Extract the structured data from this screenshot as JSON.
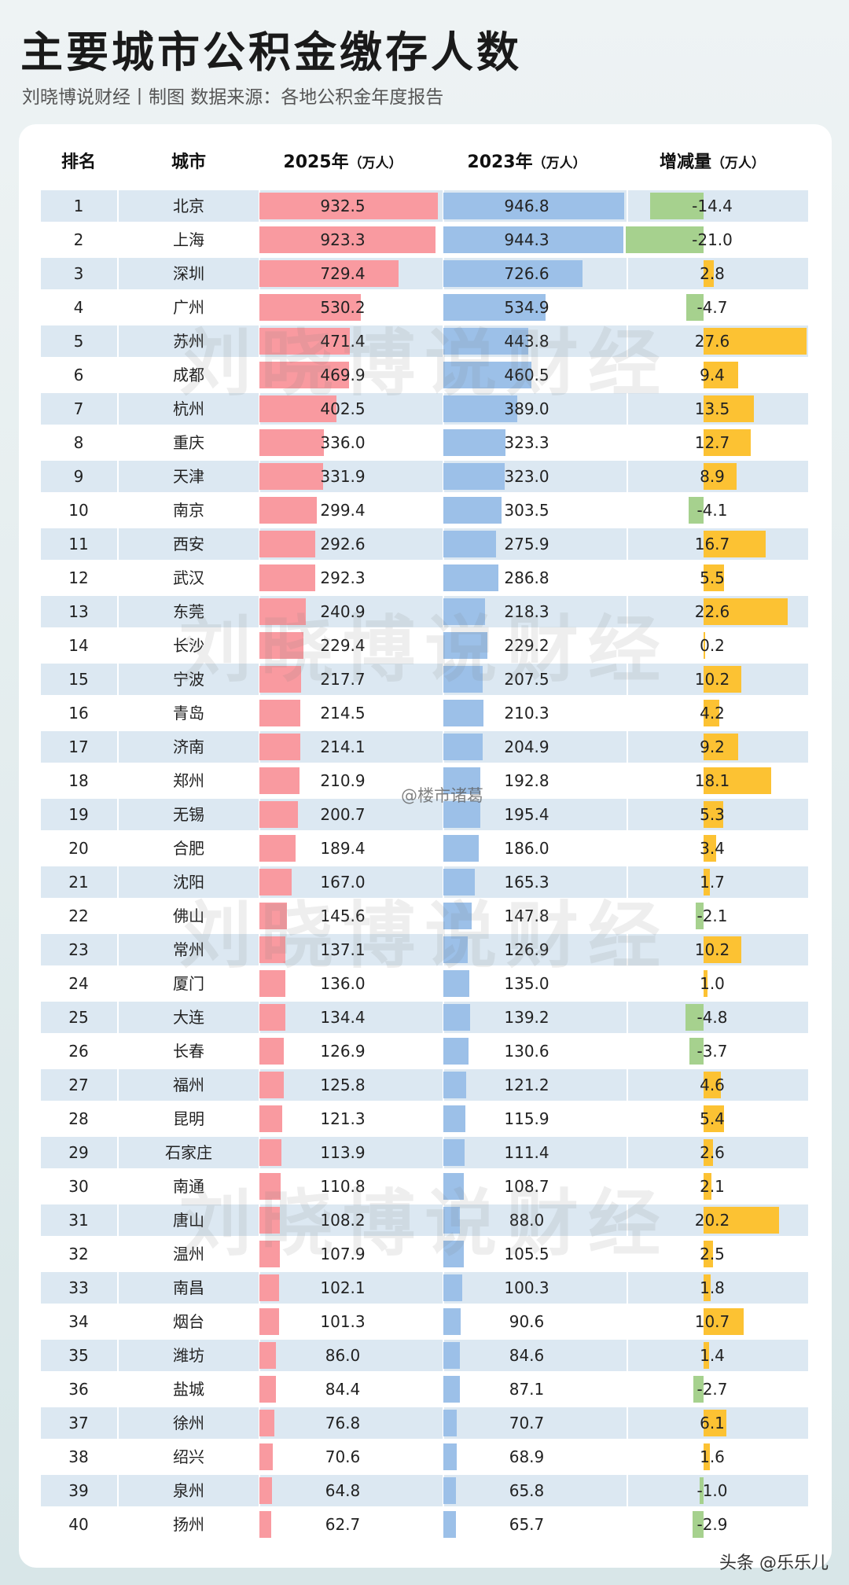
{
  "title": "主要城市公积金缴存人数",
  "subtitle": "刘晓博说财经丨制图  数据来源：各地公积金年度报告",
  "watermark_text": "刘晓博说财经",
  "weibo_tag": "@楼市诸葛",
  "corner_tag": "头条 @乐乐儿",
  "colors": {
    "bar2025": "#f99aa0",
    "bar2023": "#9cc0e8",
    "increase": "#fcc233",
    "decrease": "#a6d18e",
    "row_shade": "#dce8f2"
  },
  "chart_data": {
    "type": "table",
    "headers": {
      "rank": "排名",
      "city": "城市",
      "y2025": "2025年",
      "y2025_unit": "（万人）",
      "y2023": "2023年",
      "y2023_unit": "（万人）",
      "change": "增减量",
      "change_unit": "（万人）"
    },
    "rows": [
      {
        "rank": "1",
        "city": "北京",
        "y2025": 932.5,
        "y2023": 946.8,
        "change": -14.4
      },
      {
        "rank": "2",
        "city": "上海",
        "y2025": 923.3,
        "y2023": 944.3,
        "change": -21.0
      },
      {
        "rank": "3",
        "city": "深圳",
        "y2025": 729.4,
        "y2023": 726.6,
        "change": 2.8
      },
      {
        "rank": "4",
        "city": "广州",
        "y2025": 530.2,
        "y2023": 534.9,
        "change": -4.7
      },
      {
        "rank": "5",
        "city": "苏州",
        "y2025": 471.4,
        "y2023": 443.8,
        "change": 27.6
      },
      {
        "rank": "6",
        "city": "成都",
        "y2025": 469.9,
        "y2023": 460.5,
        "change": 9.4
      },
      {
        "rank": "7",
        "city": "杭州",
        "y2025": 402.5,
        "y2023": 389.0,
        "change": 13.5
      },
      {
        "rank": "8",
        "city": "重庆",
        "y2025": 336.0,
        "y2023": 323.3,
        "change": 12.7
      },
      {
        "rank": "9",
        "city": "天津",
        "y2025": 331.9,
        "y2023": 323.0,
        "change": 8.9
      },
      {
        "rank": "10",
        "city": "南京",
        "y2025": 299.4,
        "y2023": 303.5,
        "change": -4.1
      },
      {
        "rank": "11",
        "city": "西安",
        "y2025": 292.6,
        "y2023": 275.9,
        "change": 16.7
      },
      {
        "rank": "12",
        "city": "武汉",
        "y2025": 292.3,
        "y2023": 286.8,
        "change": 5.5
      },
      {
        "rank": "13",
        "city": "东莞",
        "y2025": 240.9,
        "y2023": 218.3,
        "change": 22.6
      },
      {
        "rank": "14",
        "city": "长沙",
        "y2025": 229.4,
        "y2023": 229.2,
        "change": 0.2
      },
      {
        "rank": "15",
        "city": "宁波",
        "y2025": 217.7,
        "y2023": 207.5,
        "change": 10.2
      },
      {
        "rank": "16",
        "city": "青岛",
        "y2025": 214.5,
        "y2023": 210.3,
        "change": 4.2
      },
      {
        "rank": "17",
        "city": "济南",
        "y2025": 214.1,
        "y2023": 204.9,
        "change": 9.2
      },
      {
        "rank": "18",
        "city": "郑州",
        "y2025": 210.9,
        "y2023": 192.8,
        "change": 18.1
      },
      {
        "rank": "19",
        "city": "无锡",
        "y2025": 200.7,
        "y2023": 195.4,
        "change": 5.3
      },
      {
        "rank": "20",
        "city": "合肥",
        "y2025": 189.4,
        "y2023": 186.0,
        "change": 3.4
      },
      {
        "rank": "21",
        "city": "沈阳",
        "y2025": 167.0,
        "y2023": 165.3,
        "change": 1.7
      },
      {
        "rank": "22",
        "city": "佛山",
        "y2025": 145.6,
        "y2023": 147.8,
        "change": -2.1
      },
      {
        "rank": "23",
        "city": "常州",
        "y2025": 137.1,
        "y2023": 126.9,
        "change": 10.2
      },
      {
        "rank": "24",
        "city": "厦门",
        "y2025": 136.0,
        "y2023": 135.0,
        "change": 1.0
      },
      {
        "rank": "25",
        "city": "大连",
        "y2025": 134.4,
        "y2023": 139.2,
        "change": -4.8
      },
      {
        "rank": "26",
        "city": "长春",
        "y2025": 126.9,
        "y2023": 130.6,
        "change": -3.7
      },
      {
        "rank": "27",
        "city": "福州",
        "y2025": 125.8,
        "y2023": 121.2,
        "change": 4.6
      },
      {
        "rank": "28",
        "city": "昆明",
        "y2025": 121.3,
        "y2023": 115.9,
        "change": 5.4
      },
      {
        "rank": "29",
        "city": "石家庄",
        "y2025": 113.9,
        "y2023": 111.4,
        "change": 2.6
      },
      {
        "rank": "30",
        "city": "南通",
        "y2025": 110.8,
        "y2023": 108.7,
        "change": 2.1
      },
      {
        "rank": "31",
        "city": "唐山",
        "y2025": 108.2,
        "y2023": 88.0,
        "change": 20.2
      },
      {
        "rank": "32",
        "city": "温州",
        "y2025": 107.9,
        "y2023": 105.5,
        "change": 2.5
      },
      {
        "rank": "33",
        "city": "南昌",
        "y2025": 102.1,
        "y2023": 100.3,
        "change": 1.8
      },
      {
        "rank": "34",
        "city": "烟台",
        "y2025": 101.3,
        "y2023": 90.6,
        "change": 10.7
      },
      {
        "rank": "35",
        "city": "潍坊",
        "y2025": 86.0,
        "y2023": 84.6,
        "change": 1.4
      },
      {
        "rank": "36",
        "city": "盐城",
        "y2025": 84.4,
        "y2023": 87.1,
        "change": -2.7
      },
      {
        "rank": "37",
        "city": "徐州",
        "y2025": 76.8,
        "y2023": 70.7,
        "change": 6.1
      },
      {
        "rank": "38",
        "city": "绍兴",
        "y2025": 70.6,
        "y2023": 68.9,
        "change": 1.6
      },
      {
        "rank": "39",
        "city": "泉州",
        "y2025": 64.8,
        "y2023": 65.8,
        "change": -1.0
      },
      {
        "rank": "40",
        "city": "扬州",
        "y2025": 62.7,
        "y2023": 65.7,
        "change": -2.9
      }
    ]
  }
}
